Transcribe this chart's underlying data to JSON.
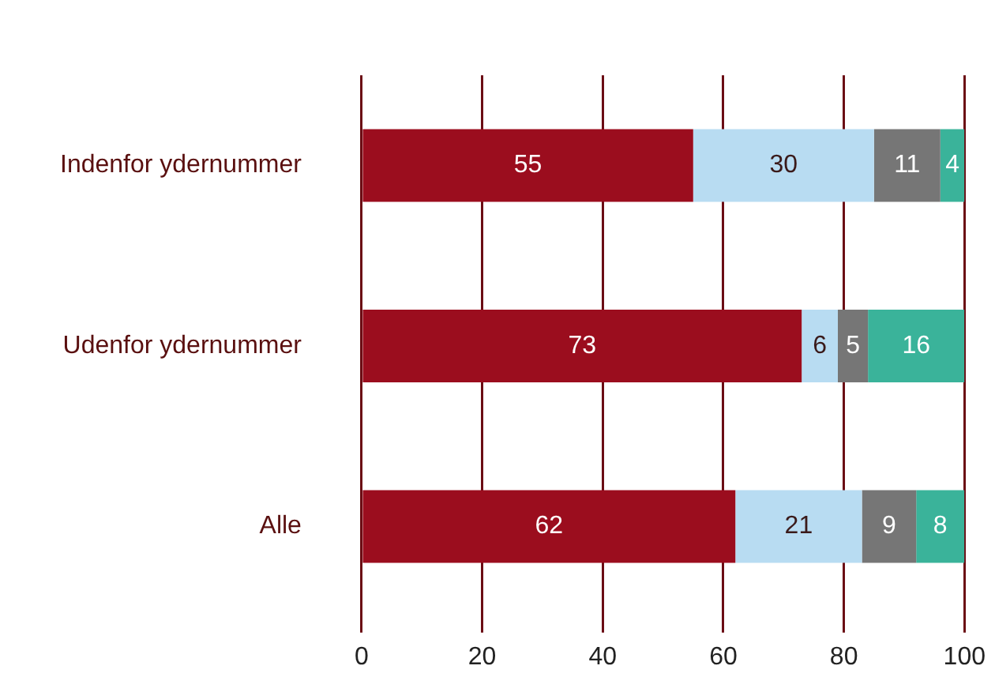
{
  "chart_data": {
    "type": "bar",
    "orientation": "horizontal",
    "stacked": true,
    "categories": [
      "Indenfor ydernummer",
      "Udenfor ydernummer",
      "Alle"
    ],
    "series": [
      {
        "color": "#9b0d1e",
        "values": [
          55,
          73,
          62
        ]
      },
      {
        "color": "#b8dcf2",
        "values": [
          30,
          6,
          21
        ]
      },
      {
        "color": "#767676",
        "values": [
          11,
          5,
          9
        ]
      },
      {
        "color": "#3ab39a",
        "values": [
          4,
          16,
          8
        ]
      }
    ],
    "xlim": [
      0,
      100
    ],
    "xticks": [
      0,
      20,
      40,
      60,
      80,
      100
    ],
    "grid": "x",
    "legend": false,
    "data_labels": true
  }
}
